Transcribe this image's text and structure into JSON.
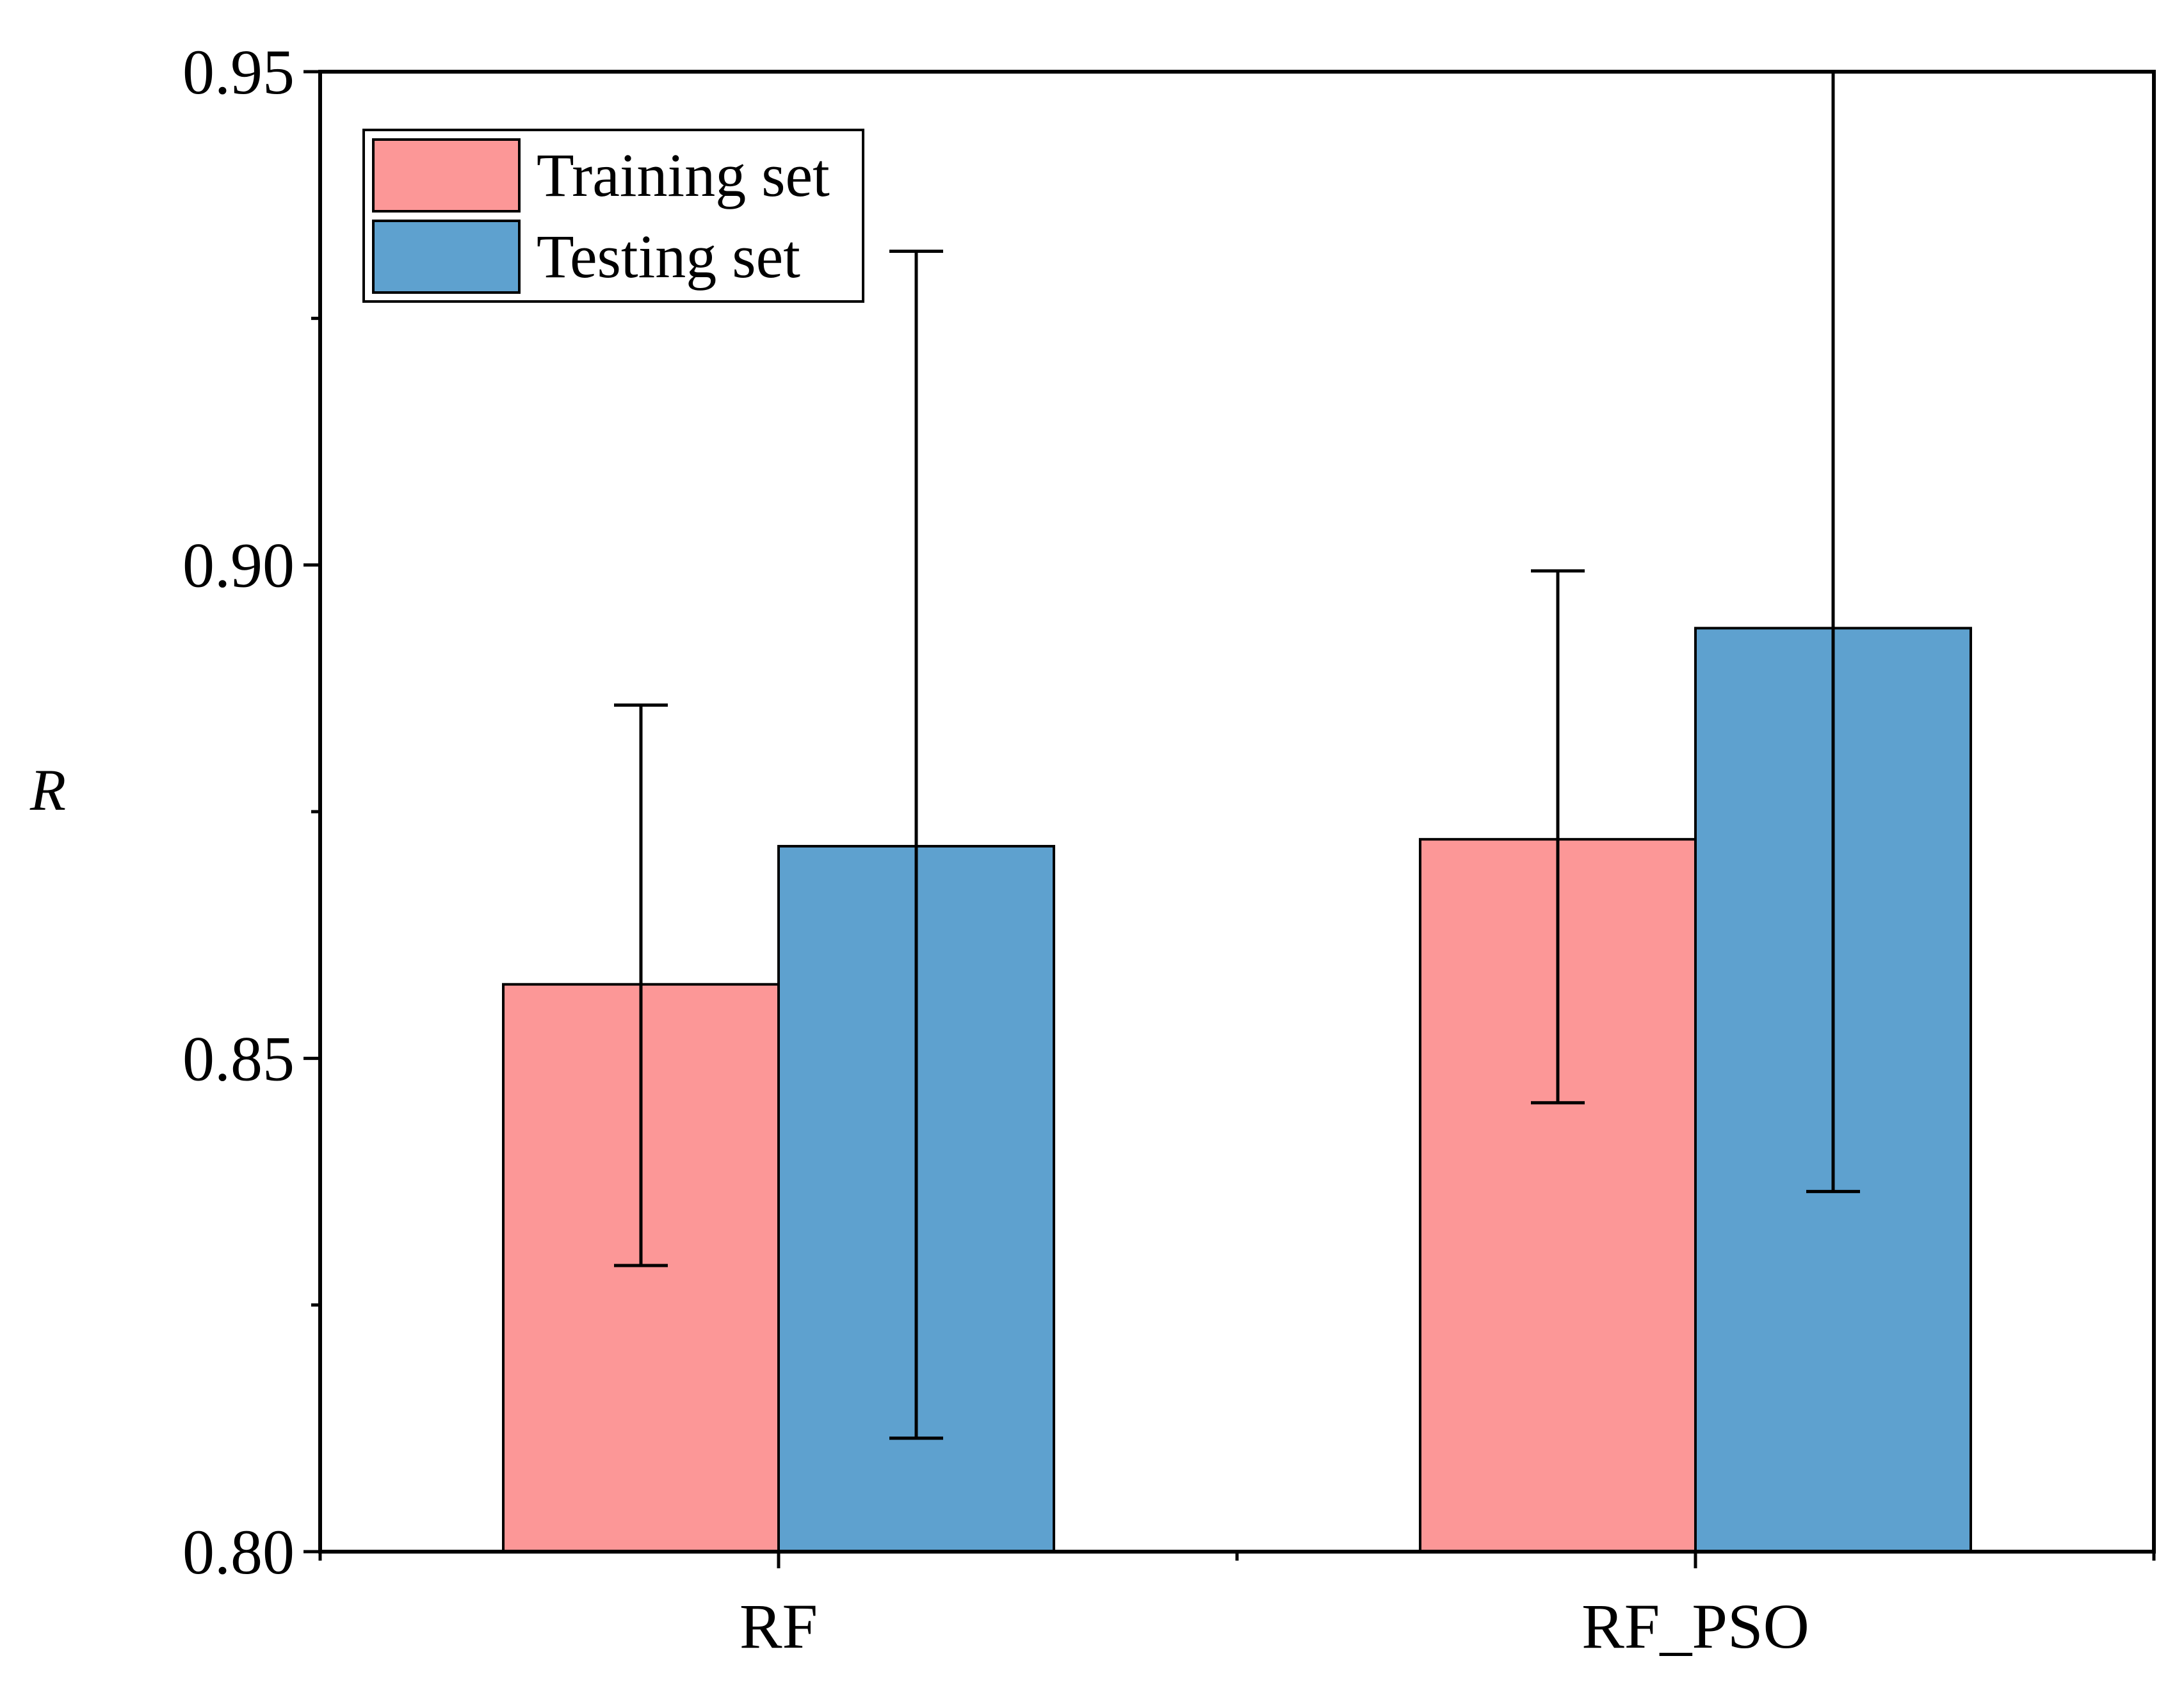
{
  "chart_data": {
    "type": "bar",
    "title": "",
    "xlabel": "",
    "ylabel": "R",
    "ylim": [
      0.8,
      0.95
    ],
    "yticks": [
      "0.80",
      "0.85",
      "0.90",
      "0.95"
    ],
    "y_minor_ticks": [
      0.825,
      0.875,
      0.925
    ],
    "categories": [
      "RF",
      "RF_PSO"
    ],
    "series": [
      {
        "name": "Training set",
        "color": "#fc9797",
        "values": [
          0.8575,
          0.8722
        ],
        "error_low": [
          0.829,
          0.8455
        ],
        "error_high": [
          0.8858,
          0.8994
        ]
      },
      {
        "name": "Testing set",
        "color": "#5ea1cf",
        "values": [
          0.8715,
          0.8936
        ],
        "error_low": [
          0.8115,
          0.8365
        ],
        "error_high": [
          0.9318,
          0.954
        ]
      }
    ],
    "grid": false,
    "legend_position": "top-left"
  }
}
